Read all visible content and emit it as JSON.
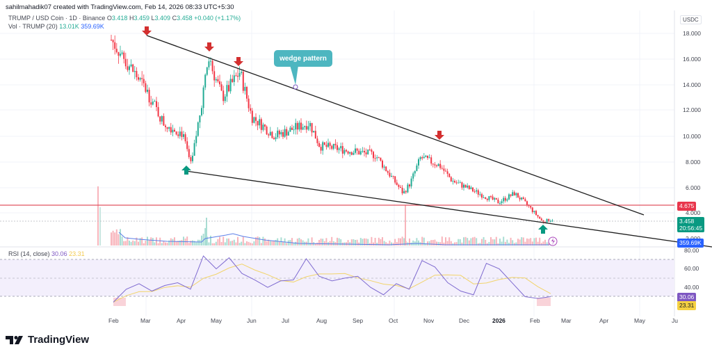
{
  "header": {
    "credit": "sahilmahadik07 created with TradingView.com, Feb 14, 2026 08:33 UTC+5:30"
  },
  "legend": {
    "symbol": "TRUMP / USD Coin · 1D · Binance",
    "open_label": "O",
    "open": "3.418",
    "high_label": "H",
    "high": "3.459",
    "low_label": "L",
    "low": "3.409",
    "close_label": "C",
    "close": "3.458",
    "change": "+0.040 (+1.17%)",
    "volume_label": "Vol · TRUMP (20)",
    "volume": "13.01K",
    "volume_ma": "359.69K",
    "rsi_label": "RSI (14, close)",
    "rsi_value": "30.06",
    "rsi_ma": "23.31"
  },
  "price_axis": {
    "currency": "USDC",
    "ticks": [
      "18.000",
      "16.000",
      "14.000",
      "12.000",
      "10.000",
      "8.000",
      "6.000",
      "4.000",
      "2.000"
    ],
    "resistance_tag": "4.675",
    "last_price_tag": "3.458",
    "countdown_tag": "20:56:45",
    "volume_tag": "359.69K"
  },
  "rsi_axis": {
    "ticks": [
      "80.00",
      "60.00",
      "40.00"
    ],
    "rsi_tag": "30.06",
    "rsi_ma_tag": "23.31"
  },
  "time_axis": [
    "Feb",
    "Mar",
    "Apr",
    "May",
    "Jun",
    "Jul",
    "Aug",
    "Sep",
    "Oct",
    "Nov",
    "Dec",
    "2026",
    "Feb",
    "Mar",
    "Apr",
    "May",
    "Ju"
  ],
  "annotation": {
    "label": "wedge pattern"
  },
  "brand": {
    "name": "TradingView"
  },
  "colors": {
    "up": "#22ab94",
    "down": "#f23645",
    "resistance": "#e05561",
    "volume_ma": "#2962ff",
    "rsi": "#7e57c2",
    "rsi_ma": "#f2d46b",
    "bubble": "#4db6c0"
  },
  "chart_data": {
    "type": "candlestick",
    "title": "TRUMP / USD Coin · 1D · Binance",
    "ylabel": "USDC",
    "ylim": [
      1.5,
      19.5
    ],
    "x_ticks": [
      "Feb",
      "Mar",
      "Apr",
      "May",
      "Jun",
      "Jul",
      "Aug",
      "Sep",
      "Oct",
      "Nov",
      "Dec",
      "2026",
      "Feb",
      "Mar",
      "Apr",
      "May",
      "Ju"
    ],
    "approx_close_series": {
      "dates": [
        "2025-02",
        "2025-03-01",
        "2025-03-15",
        "2025-04-01",
        "2025-04-10",
        "2025-04-25",
        "2025-05-10",
        "2025-05-20",
        "2025-06-01",
        "2025-06-20",
        "2025-07-10",
        "2025-07-20",
        "2025-08-15",
        "2025-09-10",
        "2025-10-01",
        "2025-10-10",
        "2025-10-25",
        "2025-11-05",
        "2025-11-20",
        "2025-12-15",
        "2026-01-01",
        "2026-01-15",
        "2026-02-01",
        "2026-02-10",
        "2026-02-14"
      ],
      "values": [
        17.5,
        13.5,
        11.0,
        10.2,
        7.6,
        16.0,
        13.0,
        15.0,
        11.5,
        10.0,
        11.0,
        9.2,
        9.0,
        8.5,
        5.5,
        6.3,
        8.3,
        7.7,
        6.5,
        5.2,
        4.8,
        5.5,
        4.5,
        3.3,
        3.458
      ]
    },
    "ohlc_last": {
      "open": 3.418,
      "high": 3.459,
      "low": 3.409,
      "close": 3.458,
      "change": 0.04,
      "change_pct": 1.17
    },
    "horizontal_lines": [
      {
        "name": "resistance",
        "value": 4.675
      }
    ],
    "trendlines": [
      {
        "name": "upper wedge",
        "from": [
          "2025-03-01",
          18.0
        ],
        "to": [
          "2026-05-01",
          3.9
        ]
      },
      {
        "name": "lower wedge",
        "from": [
          "2025-04-10",
          7.2
        ],
        "to": [
          "2026-07-01",
          1.9
        ]
      }
    ],
    "markers": [
      {
        "type": "down-arrow",
        "date": "2025-03-01",
        "price": 17.9
      },
      {
        "type": "down-arrow",
        "date": "2025-05-01",
        "price": 16.2
      },
      {
        "type": "down-arrow",
        "date": "2025-05-20",
        "price": 15.4
      },
      {
        "type": "down-arrow",
        "date": "2025-11-05",
        "price": 9.2
      },
      {
        "type": "up-arrow",
        "date": "2025-04-10",
        "price": 7.3
      },
      {
        "type": "up-arrow",
        "date": "2026-02-10",
        "price": 3.1
      }
    ],
    "volume": {
      "last": "13.01K",
      "ma20": "359.69K"
    },
    "rsi": {
      "period": 14,
      "value": 30.06,
      "ma": 23.31,
      "levels": [
        70,
        50,
        30
      ],
      "ylim": [
        20,
        80
      ],
      "approx_values": [
        24,
        38,
        44,
        36,
        42,
        45,
        38,
        74,
        60,
        72,
        55,
        48,
        40,
        47,
        48,
        71,
        52,
        47,
        50,
        52,
        40,
        32,
        44,
        38,
        69,
        62,
        45,
        36,
        32,
        66,
        60,
        45,
        30,
        28,
        30
      ]
    },
    "annotations": [
      "wedge pattern"
    ]
  }
}
